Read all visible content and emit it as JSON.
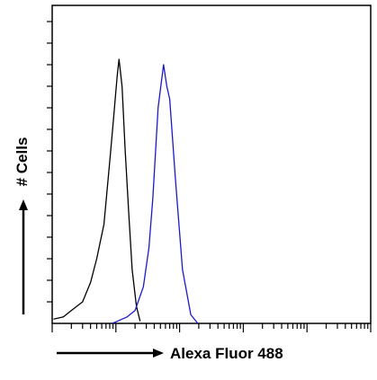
{
  "chart_data": {
    "type": "line",
    "ylabel": "# Cells",
    "xlabel": "Alexa Fluor 488",
    "xscale": "log",
    "xlim": [
      1,
      100000
    ],
    "xticks": [
      1,
      2,
      3,
      4,
      5,
      6,
      7,
      8,
      9,
      10,
      20,
      30,
      40,
      50,
      60,
      70,
      80,
      90,
      100,
      200,
      300,
      400,
      500,
      600,
      700,
      800,
      900,
      1000,
      2000,
      3000,
      4000,
      5000,
      6000,
      7000,
      8000,
      9000,
      10000,
      20000,
      30000,
      40000,
      50000,
      60000,
      70000,
      80000,
      90000,
      100000
    ],
    "ylim": [
      0,
      14.75
    ],
    "yticks": [
      1,
      2,
      3,
      4,
      5,
      6,
      7,
      8,
      9,
      10,
      11,
      12,
      13,
      14
    ],
    "series": [
      {
        "color": "#000000",
        "x": [
          1.05,
          1.5,
          2.0,
          3.0,
          4.0,
          5.0,
          6.5,
          8.0,
          9.0,
          10.5,
          11.2,
          12.5,
          14,
          16,
          18,
          21,
          24
        ],
        "values": [
          0.2,
          0.3,
          0.6,
          1.0,
          1.9,
          3.0,
          4.6,
          7.5,
          9.2,
          11.5,
          12.25,
          11.0,
          8.0,
          5.0,
          2.5,
          0.8,
          0.1
        ]
      },
      {
        "color": "#1a1acc",
        "x": [
          8.8,
          15,
          20,
          27,
          33,
          38,
          46,
          56,
          63,
          70,
          86,
          111,
          150,
          193
        ],
        "values": [
          0,
          0.3,
          0.6,
          1.7,
          3.5,
          5.8,
          10,
          12,
          11,
          10.4,
          6.7,
          2.5,
          0.4,
          0
        ]
      }
    ]
  }
}
